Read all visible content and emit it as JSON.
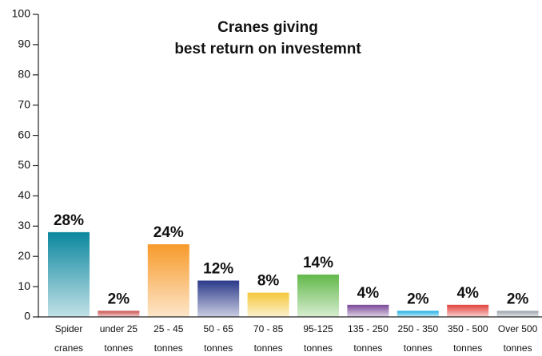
{
  "chart_data": {
    "type": "bar",
    "title": [
      "Cranes giving",
      "best return on investemnt"
    ],
    "categories": [
      [
        "Spider",
        "cranes"
      ],
      [
        "under 25",
        "tonnes"
      ],
      [
        "25 - 45",
        "tonnes"
      ],
      [
        "50 - 65",
        "tonnes"
      ],
      [
        "70 - 85",
        "tonnes"
      ],
      [
        "95-125",
        "tonnes"
      ],
      [
        "135 - 250",
        "tonnes"
      ],
      [
        "250 - 350",
        "tonnes"
      ],
      [
        "350 - 500",
        "tonnes"
      ],
      [
        "Over 500",
        "tonnes"
      ]
    ],
    "values": [
      28,
      2,
      24,
      12,
      8,
      14,
      4,
      2,
      4,
      2
    ],
    "value_labels": [
      "28%",
      "2%",
      "24%",
      "12%",
      "8%",
      "14%",
      "4%",
      "2%",
      "4%",
      "2%"
    ],
    "colors": [
      "#0b879e",
      "#c94f4c",
      "#f79a2a",
      "#2b3a8a",
      "#f5c83a",
      "#62b84a",
      "#7a4898",
      "#1fb0e2",
      "#e2423c",
      "#9aa2aa"
    ],
    "ylim": [
      0,
      100
    ],
    "yticks": [
      0,
      10,
      20,
      30,
      40,
      50,
      60,
      70,
      80,
      90,
      100
    ]
  }
}
